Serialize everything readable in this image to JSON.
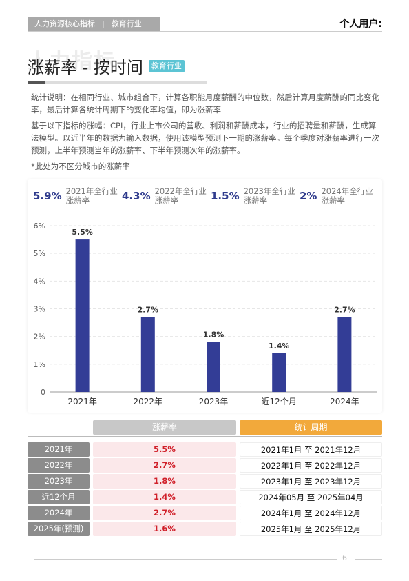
{
  "header": {
    "tag": "人力资源核心指标",
    "sep": "|",
    "industry": "教育行业",
    "user": "个人用户:"
  },
  "watermark": "人力指标",
  "title": "涨薪率 - 按时间",
  "badge": "教育行业",
  "paragraphs": [
    "统计说明：在相同行业、城市组合下，计算各职能月度薪酬的中位数，然后计算月度薪酬的同比变化率，最后计算各统计周期下的变化率均值，即为涨薪率",
    "基于以下指标的涨幅：CPI，行业上市公司的营收、利润和薪酬成本，行业的招聘量和薪酬，生成算法模型。以近半年的数据为输入数据，使用该模型预测下一期的涨薪率。每个季度对涨薪率进行一次预测，上半年预测当年的涨薪率、下半年预测次年的涨薪率。",
    "*此处为不区分城市的涨薪率"
  ],
  "summary": [
    {
      "value": "5.9%",
      "label": "2021年全行业涨薪率"
    },
    {
      "value": "4.3%",
      "label": "2022年全行业涨薪率"
    },
    {
      "value": "1.5%",
      "label": "2023年全行业涨薪率"
    },
    {
      "value": "2%",
      "label": "2024年全行业涨薪率"
    }
  ],
  "chart_data": {
    "type": "bar",
    "categories": [
      "2021年",
      "2022年",
      "2023年",
      "近12个月",
      "2024年"
    ],
    "values": [
      5.5,
      2.7,
      1.8,
      1.4,
      2.7
    ],
    "value_labels": [
      "5.5%",
      "2.7%",
      "1.8%",
      "1.4%",
      "2.7%"
    ],
    "color": "#333d96",
    "ylim": [
      0,
      6
    ],
    "yticks": [
      0,
      {
        "value": 1,
        "label": "1%"
      },
      {
        "value": 2,
        "label": "2%"
      },
      {
        "value": 3,
        "label": "3%"
      },
      {
        "value": 4,
        "label": "4%"
      },
      {
        "value": 5,
        "label": "5%"
      },
      {
        "value": 6,
        "label": "6%"
      }
    ],
    "grid": true
  },
  "table": {
    "headers": [
      "涨薪率",
      "统计周期"
    ],
    "rows": [
      [
        "2021年",
        "5.5%",
        "2021年1月 至 2021年12月"
      ],
      [
        "2022年",
        "2.7%",
        "2022年1月 至 2022年12月"
      ],
      [
        "2023年",
        "1.8%",
        "2023年1月 至 2023年12月"
      ],
      [
        "近12个月",
        "1.4%",
        "2024年05月 至 2025年04月"
      ],
      [
        "2024年",
        "2.7%",
        "2024年1月 至 2024年12月"
      ],
      [
        "2025年(预测)",
        "1.6%",
        "2025年1月 至 2025年12月"
      ]
    ]
  },
  "page_number": "6"
}
